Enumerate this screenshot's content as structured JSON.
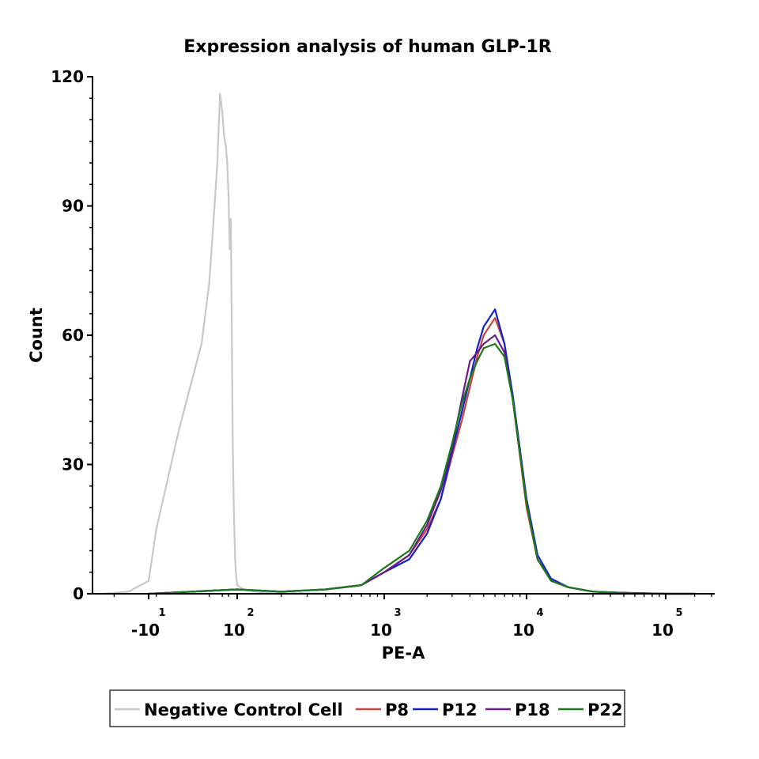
{
  "chart_data": {
    "type": "line",
    "title": "Expression analysis of human GLP-1R",
    "xlabel": "PE-A",
    "ylabel": "Count",
    "x_scale": "biexponential",
    "ylim": [
      0,
      120
    ],
    "y_ticks": [
      0,
      30,
      60,
      90,
      120
    ],
    "x_ticks": [
      {
        "value": -10,
        "base": "-10",
        "exp": "1"
      },
      {
        "value": 100,
        "base": "10",
        "exp": "2"
      },
      {
        "value": 1000,
        "base": "10",
        "exp": "3"
      },
      {
        "value": 10000,
        "base": "10",
        "exp": "4"
      },
      {
        "value": 100000,
        "base": "10",
        "exp": "5"
      }
    ],
    "grid": false,
    "legend_position": "bottom",
    "series": [
      {
        "name": "Negative Control Cell",
        "color": "#c8c8c8",
        "x": [
          -25,
          -15,
          -10,
          -5,
          0,
          5,
          10,
          15,
          20,
          25,
          30,
          35,
          40,
          45,
          50,
          55,
          60,
          65,
          70,
          75,
          80,
          85,
          90,
          100,
          110,
          130,
          160,
          200,
          300,
          500
        ],
        "y": [
          0,
          0.5,
          3,
          15,
          38,
          58,
          72,
          88,
          100,
          116,
          112,
          106,
          104,
          100,
          92,
          80,
          87,
          60,
          35,
          22,
          14,
          8,
          5,
          2,
          1,
          0.5,
          0.3,
          0.2,
          0.1,
          0
        ]
      },
      {
        "name": "P8",
        "color": "#c8443c",
        "x": [
          -10,
          100,
          200,
          400,
          700,
          1000,
          1500,
          2000,
          2500,
          3000,
          3500,
          4000,
          4500,
          5000,
          6000,
          7000,
          8000,
          10000,
          12000,
          15000,
          20000,
          30000,
          50000,
          100000,
          200000
        ],
        "y": [
          0,
          1,
          0.5,
          1,
          2,
          5,
          9,
          15,
          22,
          32,
          40,
          48,
          55,
          60,
          64,
          58,
          45,
          20,
          8,
          3,
          1.5,
          0.5,
          0.2,
          0,
          0
        ]
      },
      {
        "name": "P12",
        "color": "#1420c8",
        "x": [
          -10,
          100,
          200,
          400,
          700,
          1000,
          1500,
          2000,
          2500,
          3000,
          3500,
          4000,
          4500,
          5000,
          6000,
          7000,
          8000,
          10000,
          12000,
          15000,
          20000,
          30000,
          50000,
          100000,
          200000
        ],
        "y": [
          0,
          1,
          0.5,
          1,
          2,
          5,
          8,
          14,
          22,
          33,
          42,
          50,
          57,
          62,
          66,
          58,
          46,
          22,
          9,
          3.5,
          1.5,
          0.5,
          0.2,
          0,
          0
        ]
      },
      {
        "name": "P18",
        "color": "#6a1a8a",
        "x": [
          -10,
          100,
          200,
          400,
          700,
          1000,
          1500,
          2000,
          2500,
          3000,
          3500,
          4000,
          4500,
          5000,
          6000,
          7000,
          8000,
          10000,
          12000,
          15000,
          20000,
          30000,
          50000,
          100000,
          200000
        ],
        "y": [
          0,
          1,
          0.5,
          1,
          2,
          5,
          9,
          16,
          24,
          34,
          45,
          54,
          56,
          58,
          60,
          56,
          45,
          21,
          8,
          3,
          1.5,
          0.5,
          0.2,
          0,
          0
        ]
      },
      {
        "name": "P22",
        "color": "#1a7a1a",
        "x": [
          -10,
          100,
          200,
          400,
          700,
          1000,
          1500,
          2000,
          2500,
          3000,
          3500,
          4000,
          4500,
          5000,
          6000,
          7000,
          8000,
          10000,
          12000,
          15000,
          20000,
          30000,
          50000,
          100000,
          200000
        ],
        "y": [
          0,
          1,
          0.5,
          1,
          2,
          6,
          10,
          17,
          25,
          35,
          44,
          50,
          54,
          57,
          58,
          55,
          45,
          21,
          8,
          3,
          1.5,
          0.5,
          0.2,
          0,
          0
        ]
      }
    ]
  }
}
